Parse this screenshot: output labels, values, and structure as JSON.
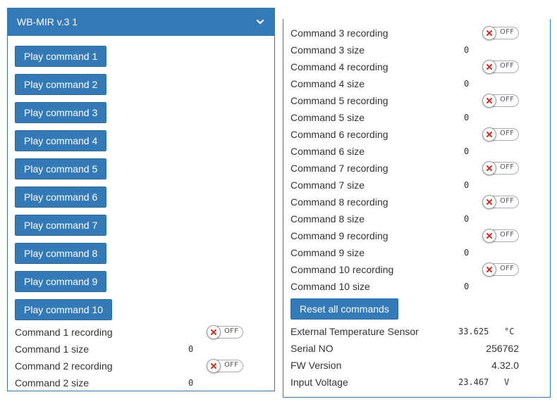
{
  "device": {
    "title": "WB-MIR v.3 1"
  },
  "play_buttons": [
    "Play command 1",
    "Play command 2",
    "Play command 3",
    "Play command 4",
    "Play command 5",
    "Play command 6",
    "Play command 7",
    "Play command 8",
    "Play command 9",
    "Play command 10"
  ],
  "commands": [
    {
      "recording_label": "Command 1 recording",
      "recording_state": "OFF",
      "size_label": "Command 1 size",
      "size_value": "0"
    },
    {
      "recording_label": "Command 2 recording",
      "recording_state": "OFF",
      "size_label": "Command 2 size",
      "size_value": "0"
    },
    {
      "recording_label": "Command 3 recording",
      "recording_state": "OFF",
      "size_label": "Command 3 size",
      "size_value": "0"
    },
    {
      "recording_label": "Command 4 recording",
      "recording_state": "OFF",
      "size_label": "Command 4 size",
      "size_value": "0"
    },
    {
      "recording_label": "Command 5 recording",
      "recording_state": "OFF",
      "size_label": "Command 5 size",
      "size_value": "0"
    },
    {
      "recording_label": "Command 6 recording",
      "recording_state": "OFF",
      "size_label": "Command 6 size",
      "size_value": "0"
    },
    {
      "recording_label": "Command 7 recording",
      "recording_state": "OFF",
      "size_label": "Command 7 size",
      "size_value": "0"
    },
    {
      "recording_label": "Command 8 recording",
      "recording_state": "OFF",
      "size_label": "Command 8 size",
      "size_value": "0"
    },
    {
      "recording_label": "Command 9 recording",
      "recording_state": "OFF",
      "size_label": "Command 9 size",
      "size_value": "0"
    },
    {
      "recording_label": "Command 10 recording",
      "recording_state": "OFF",
      "size_label": "Command 10 size",
      "size_value": "0"
    }
  ],
  "reset_button": "Reset all commands",
  "sensors": {
    "ext_temp": {
      "label": "External Temperature Sensor",
      "value": "33.625",
      "unit": "°C"
    },
    "serial": {
      "label": "Serial NO",
      "value": "256762"
    },
    "fw": {
      "label": "FW Version",
      "value": "4.32.0"
    },
    "voltage": {
      "label": "Input Voltage",
      "value": "23.467",
      "unit": "V"
    }
  },
  "colors": {
    "primary": "#337ab7",
    "toggle_x": "#c9302c"
  },
  "icons": {
    "collapse": "chevron-down-icon",
    "toggle_off": "close-icon"
  }
}
